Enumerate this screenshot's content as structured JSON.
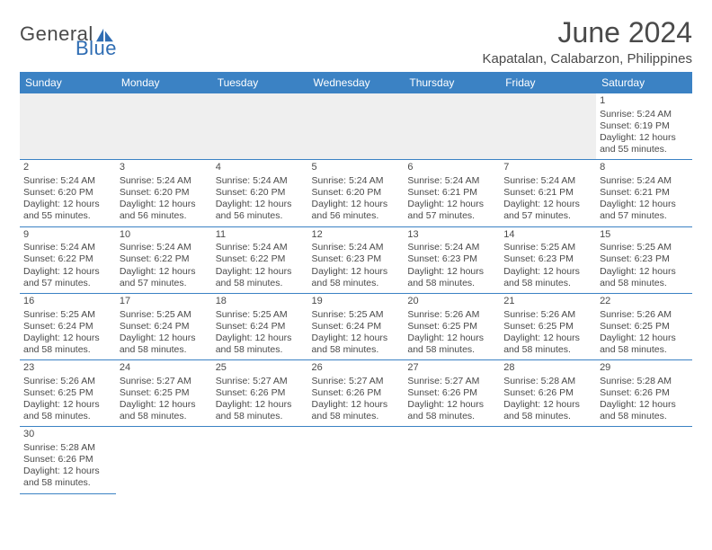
{
  "brand": {
    "part1": "General",
    "part2": "Blue",
    "text_color": "#4a4a4a",
    "accent_color": "#2f6db3"
  },
  "title": "June 2024",
  "location": "Kapatalan, Calabarzon, Philippines",
  "colors": {
    "header_bg": "#3b82c4",
    "header_text": "#ffffff",
    "cell_border": "#3b82c4",
    "blank_bg": "#efefef",
    "text": "#4a4a4a",
    "background": "#ffffff"
  },
  "day_headers": [
    "Sunday",
    "Monday",
    "Tuesday",
    "Wednesday",
    "Thursday",
    "Friday",
    "Saturday"
  ],
  "weeks": [
    [
      null,
      null,
      null,
      null,
      null,
      null,
      {
        "n": "1",
        "sunrise": "Sunrise: 5:24 AM",
        "sunset": "Sunset: 6:19 PM",
        "daylight": "Daylight: 12 hours and 55 minutes."
      }
    ],
    [
      {
        "n": "2",
        "sunrise": "Sunrise: 5:24 AM",
        "sunset": "Sunset: 6:20 PM",
        "daylight": "Daylight: 12 hours and 55 minutes."
      },
      {
        "n": "3",
        "sunrise": "Sunrise: 5:24 AM",
        "sunset": "Sunset: 6:20 PM",
        "daylight": "Daylight: 12 hours and 56 minutes."
      },
      {
        "n": "4",
        "sunrise": "Sunrise: 5:24 AM",
        "sunset": "Sunset: 6:20 PM",
        "daylight": "Daylight: 12 hours and 56 minutes."
      },
      {
        "n": "5",
        "sunrise": "Sunrise: 5:24 AM",
        "sunset": "Sunset: 6:20 PM",
        "daylight": "Daylight: 12 hours and 56 minutes."
      },
      {
        "n": "6",
        "sunrise": "Sunrise: 5:24 AM",
        "sunset": "Sunset: 6:21 PM",
        "daylight": "Daylight: 12 hours and 57 minutes."
      },
      {
        "n": "7",
        "sunrise": "Sunrise: 5:24 AM",
        "sunset": "Sunset: 6:21 PM",
        "daylight": "Daylight: 12 hours and 57 minutes."
      },
      {
        "n": "8",
        "sunrise": "Sunrise: 5:24 AM",
        "sunset": "Sunset: 6:21 PM",
        "daylight": "Daylight: 12 hours and 57 minutes."
      }
    ],
    [
      {
        "n": "9",
        "sunrise": "Sunrise: 5:24 AM",
        "sunset": "Sunset: 6:22 PM",
        "daylight": "Daylight: 12 hours and 57 minutes."
      },
      {
        "n": "10",
        "sunrise": "Sunrise: 5:24 AM",
        "sunset": "Sunset: 6:22 PM",
        "daylight": "Daylight: 12 hours and 57 minutes."
      },
      {
        "n": "11",
        "sunrise": "Sunrise: 5:24 AM",
        "sunset": "Sunset: 6:22 PM",
        "daylight": "Daylight: 12 hours and 58 minutes."
      },
      {
        "n": "12",
        "sunrise": "Sunrise: 5:24 AM",
        "sunset": "Sunset: 6:23 PM",
        "daylight": "Daylight: 12 hours and 58 minutes."
      },
      {
        "n": "13",
        "sunrise": "Sunrise: 5:24 AM",
        "sunset": "Sunset: 6:23 PM",
        "daylight": "Daylight: 12 hours and 58 minutes."
      },
      {
        "n": "14",
        "sunrise": "Sunrise: 5:25 AM",
        "sunset": "Sunset: 6:23 PM",
        "daylight": "Daylight: 12 hours and 58 minutes."
      },
      {
        "n": "15",
        "sunrise": "Sunrise: 5:25 AM",
        "sunset": "Sunset: 6:23 PM",
        "daylight": "Daylight: 12 hours and 58 minutes."
      }
    ],
    [
      {
        "n": "16",
        "sunrise": "Sunrise: 5:25 AM",
        "sunset": "Sunset: 6:24 PM",
        "daylight": "Daylight: 12 hours and 58 minutes."
      },
      {
        "n": "17",
        "sunrise": "Sunrise: 5:25 AM",
        "sunset": "Sunset: 6:24 PM",
        "daylight": "Daylight: 12 hours and 58 minutes."
      },
      {
        "n": "18",
        "sunrise": "Sunrise: 5:25 AM",
        "sunset": "Sunset: 6:24 PM",
        "daylight": "Daylight: 12 hours and 58 minutes."
      },
      {
        "n": "19",
        "sunrise": "Sunrise: 5:25 AM",
        "sunset": "Sunset: 6:24 PM",
        "daylight": "Daylight: 12 hours and 58 minutes."
      },
      {
        "n": "20",
        "sunrise": "Sunrise: 5:26 AM",
        "sunset": "Sunset: 6:25 PM",
        "daylight": "Daylight: 12 hours and 58 minutes."
      },
      {
        "n": "21",
        "sunrise": "Sunrise: 5:26 AM",
        "sunset": "Sunset: 6:25 PM",
        "daylight": "Daylight: 12 hours and 58 minutes."
      },
      {
        "n": "22",
        "sunrise": "Sunrise: 5:26 AM",
        "sunset": "Sunset: 6:25 PM",
        "daylight": "Daylight: 12 hours and 58 minutes."
      }
    ],
    [
      {
        "n": "23",
        "sunrise": "Sunrise: 5:26 AM",
        "sunset": "Sunset: 6:25 PM",
        "daylight": "Daylight: 12 hours and 58 minutes."
      },
      {
        "n": "24",
        "sunrise": "Sunrise: 5:27 AM",
        "sunset": "Sunset: 6:25 PM",
        "daylight": "Daylight: 12 hours and 58 minutes."
      },
      {
        "n": "25",
        "sunrise": "Sunrise: 5:27 AM",
        "sunset": "Sunset: 6:26 PM",
        "daylight": "Daylight: 12 hours and 58 minutes."
      },
      {
        "n": "26",
        "sunrise": "Sunrise: 5:27 AM",
        "sunset": "Sunset: 6:26 PM",
        "daylight": "Daylight: 12 hours and 58 minutes."
      },
      {
        "n": "27",
        "sunrise": "Sunrise: 5:27 AM",
        "sunset": "Sunset: 6:26 PM",
        "daylight": "Daylight: 12 hours and 58 minutes."
      },
      {
        "n": "28",
        "sunrise": "Sunrise: 5:28 AM",
        "sunset": "Sunset: 6:26 PM",
        "daylight": "Daylight: 12 hours and 58 minutes."
      },
      {
        "n": "29",
        "sunrise": "Sunrise: 5:28 AM",
        "sunset": "Sunset: 6:26 PM",
        "daylight": "Daylight: 12 hours and 58 minutes."
      }
    ],
    [
      {
        "n": "30",
        "sunrise": "Sunrise: 5:28 AM",
        "sunset": "Sunset: 6:26 PM",
        "daylight": "Daylight: 12 hours and 58 minutes."
      },
      null,
      null,
      null,
      null,
      null,
      null
    ]
  ]
}
